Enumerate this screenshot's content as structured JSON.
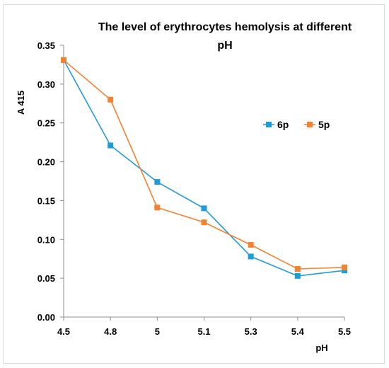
{
  "chart_data": {
    "type": "line",
    "title_line1": "The level of erythrocytes  hemolysis  at different",
    "title_line2": "pH",
    "xlabel": "pH",
    "ylabel": "A 415",
    "categories": [
      "4.5",
      "4.8",
      "5",
      "5.1",
      "5.3",
      "5.4",
      "5.5"
    ],
    "ylim": [
      0,
      0.35
    ],
    "yticks": [
      "0.00",
      "0.05",
      "0.10",
      "0.15",
      "0.20",
      "0.25",
      "0.30",
      "0.35"
    ],
    "legend_position": "right",
    "grid": false,
    "series": [
      {
        "name": "6p",
        "color": "#1f9bd7",
        "values": [
          0.331,
          0.221,
          0.174,
          0.14,
          0.078,
          0.053,
          0.06
        ]
      },
      {
        "name": "5p",
        "color": "#f58233",
        "values": [
          0.331,
          0.28,
          0.141,
          0.122,
          0.093,
          0.062,
          0.064
        ]
      }
    ]
  }
}
